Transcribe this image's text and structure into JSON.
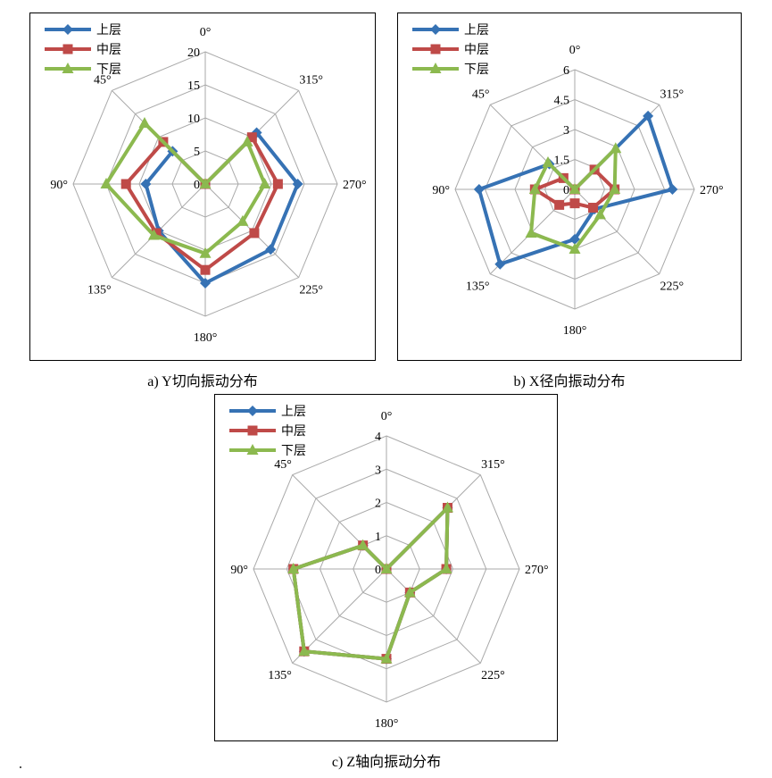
{
  "chart_data": [
    {
      "type": "radar",
      "caption": "a) Y切向振动分布",
      "categories": [
        "0°",
        "315°",
        "270°",
        "225°",
        "180°",
        "135°",
        "90°",
        "45°"
      ],
      "rmax": 20,
      "ticks": [
        "0",
        "5",
        "10",
        "15",
        "20"
      ],
      "tick_values": [
        0,
        5,
        10,
        15,
        20
      ],
      "legend_position": "top-left",
      "series": [
        {
          "name": "上层",
          "color": "#3672B4",
          "marker": "diamond",
          "values": [
            0,
            11,
            14,
            14,
            15,
            10,
            9,
            7
          ]
        },
        {
          "name": "中层",
          "color": "#BF4A48",
          "marker": "square",
          "values": [
            0,
            10,
            11,
            10.5,
            13,
            10.5,
            12,
            9
          ]
        },
        {
          "name": "下层",
          "color": "#8CB94F",
          "marker": "triangle",
          "values": [
            0,
            9,
            9,
            8,
            10.5,
            11,
            15,
            13
          ]
        }
      ]
    },
    {
      "type": "radar",
      "caption": "b) X径向振动分布",
      "categories": [
        "0°",
        "315°",
        "270°",
        "225°",
        "180°",
        "135°",
        "90°",
        "45°"
      ],
      "rmax": 6,
      "ticks": [
        "0",
        "1.5",
        "3",
        "4.5",
        "6"
      ],
      "tick_values": [
        0,
        1.5,
        3,
        4.5,
        6
      ],
      "legend_position": "top-left",
      "series": [
        {
          "name": "上层",
          "color": "#3672B4",
          "marker": "diamond",
          "values": [
            0,
            5.2,
            4.9,
            1.4,
            2.5,
            5.3,
            4.8,
            1.8
          ]
        },
        {
          "name": "中层",
          "color": "#BF4A48",
          "marker": "square",
          "values": [
            0,
            1.4,
            2.0,
            1.3,
            0.7,
            1.1,
            2.0,
            0.8
          ]
        },
        {
          "name": "下层",
          "color": "#8CB94F",
          "marker": "triangle",
          "values": [
            0,
            2.9,
            2.0,
            1.8,
            3.0,
            3.1,
            2.0,
            1.9
          ]
        }
      ]
    },
    {
      "type": "radar",
      "caption": "c) Z轴向振动分布",
      "categories": [
        "0°",
        "315°",
        "270°",
        "225°",
        "180°",
        "135°",
        "90°",
        "45°"
      ],
      "rmax": 4,
      "ticks": [
        "0",
        "1",
        "2",
        "3",
        "4"
      ],
      "tick_values": [
        0,
        1,
        2,
        3,
        4
      ],
      "legend_position": "top-left",
      "series": [
        {
          "name": "上层",
          "color": "#3672B4",
          "marker": "diamond",
          "values": [
            0,
            2.6,
            1.8,
            1.0,
            2.7,
            3.5,
            2.8,
            1.0
          ]
        },
        {
          "name": "中层",
          "color": "#BF4A48",
          "marker": "square",
          "values": [
            0,
            2.6,
            1.8,
            1.0,
            2.7,
            3.5,
            2.8,
            1.0
          ]
        },
        {
          "name": "下层",
          "color": "#8CB94F",
          "marker": "triangle",
          "values": [
            0,
            2.6,
            1.8,
            1.0,
            2.7,
            3.5,
            2.8,
            1.0
          ]
        }
      ]
    }
  ]
}
